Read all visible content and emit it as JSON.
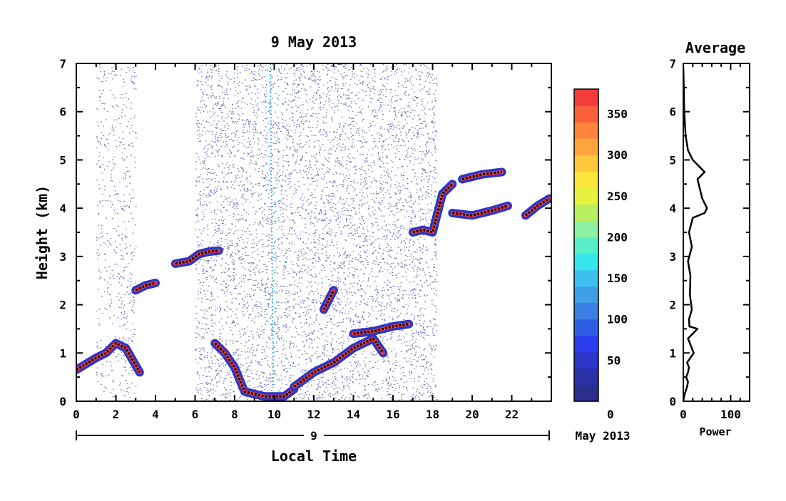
{
  "main_chart": {
    "title": "9 May 2013",
    "ylabel": "Height (km)",
    "xlabel": "Local Time",
    "day_label": "9",
    "month_label": "May 2013"
  },
  "colorbar": {
    "ticks": [
      "0",
      "50",
      "100",
      "150",
      "200",
      "250",
      "300",
      "350"
    ],
    "colors": [
      "#2a2e8c",
      "#2b31a8",
      "#2b35c8",
      "#2c3df0",
      "#2f5ee6",
      "#3a7ee6",
      "#3e9ee8",
      "#3ec0ef",
      "#35e6ee",
      "#56efc7",
      "#8cf0a0",
      "#b6f062",
      "#e6f23e",
      "#fde63c",
      "#fdc93a",
      "#fda43b",
      "#fd843a",
      "#f9603a",
      "#f23b3a"
    ]
  },
  "chart_data": [
    {
      "type": "heatmap",
      "title": "9 May 2013",
      "xlabel": "Local Time",
      "ylabel": "Height (km)",
      "xlim": [
        0,
        24
      ],
      "ylim": [
        0,
        7
      ],
      "x_ticks": [
        0,
        2,
        4,
        6,
        8,
        10,
        12,
        14,
        16,
        18,
        20,
        22
      ],
      "y_ticks": [
        0,
        1,
        2,
        3,
        4,
        5,
        6,
        7
      ],
      "colorscale_ticks": [
        0,
        50,
        100,
        150,
        200,
        250,
        300,
        350
      ],
      "colorscale_range": [
        0,
        380
      ],
      "layers": [
        {
          "x": [
            0.0,
            1.0,
            1.5,
            2.0,
            2.5,
            3.2
          ],
          "y": [
            0.65,
            0.9,
            1.0,
            1.2,
            1.1,
            0.6
          ]
        },
        {
          "x": [
            3.0,
            3.5,
            4.0
          ],
          "y": [
            2.3,
            2.4,
            2.45
          ]
        },
        {
          "x": [
            5.0,
            5.7,
            6.2,
            6.7,
            7.2
          ],
          "y": [
            2.85,
            2.9,
            3.05,
            3.1,
            3.12
          ]
        },
        {
          "x": [
            7.0,
            7.5,
            8.0,
            8.5,
            9.5,
            10.5,
            11.0
          ],
          "y": [
            1.2,
            1.0,
            0.7,
            0.2,
            0.1,
            0.1,
            0.25
          ]
        },
        {
          "x": [
            11.0,
            12.0,
            13.0,
            14.0,
            15.0,
            15.5
          ],
          "y": [
            0.3,
            0.6,
            0.8,
            1.1,
            1.3,
            1.0
          ]
        },
        {
          "x": [
            12.5,
            13.0
          ],
          "y": [
            1.9,
            2.3
          ]
        },
        {
          "x": [
            14.0,
            15.0,
            16.0,
            16.8
          ],
          "y": [
            1.4,
            1.45,
            1.55,
            1.6
          ]
        },
        {
          "x": [
            17.0,
            17.5,
            18.0,
            18.5,
            19.0
          ],
          "y": [
            3.5,
            3.55,
            3.5,
            4.3,
            4.5
          ]
        },
        {
          "x": [
            19.0,
            20.0,
            21.0,
            21.8
          ],
          "y": [
            3.9,
            3.85,
            3.95,
            4.05
          ]
        },
        {
          "x": [
            19.5,
            20.5,
            21.5
          ],
          "y": [
            4.6,
            4.7,
            4.75
          ]
        },
        {
          "x": [
            22.7,
            23.3,
            23.9
          ],
          "y": [
            3.85,
            4.05,
            4.2
          ]
        }
      ]
    },
    {
      "type": "line",
      "title": "Average",
      "xlabel": "Power",
      "xlim": [
        0,
        140
      ],
      "ylim": [
        0,
        7
      ],
      "x_ticks": [
        0,
        100
      ],
      "y_ticks": [
        0,
        1,
        2,
        3,
        4,
        5,
        6,
        7
      ],
      "x": [
        0,
        1,
        2,
        5,
        10,
        20,
        35,
        45,
        30,
        40,
        50,
        45,
        20,
        12,
        18,
        14,
        10,
        15,
        14,
        18,
        12,
        13,
        30,
        10,
        22,
        8,
        12,
        10,
        6,
        10,
        8,
        3,
        2,
        1,
        0
      ],
      "y": [
        6.95,
        6.5,
        6.0,
        5.5,
        5.2,
        5.0,
        4.85,
        4.75,
        4.6,
        4.2,
        4.0,
        3.9,
        3.8,
        3.5,
        3.2,
        3.05,
        2.9,
        2.6,
        2.2,
        1.9,
        1.7,
        1.55,
        1.5,
        1.3,
        1.0,
        0.8,
        0.7,
        0.6,
        0.5,
        0.4,
        0.3,
        0.15,
        0.1,
        0.05,
        0.02
      ]
    }
  ]
}
